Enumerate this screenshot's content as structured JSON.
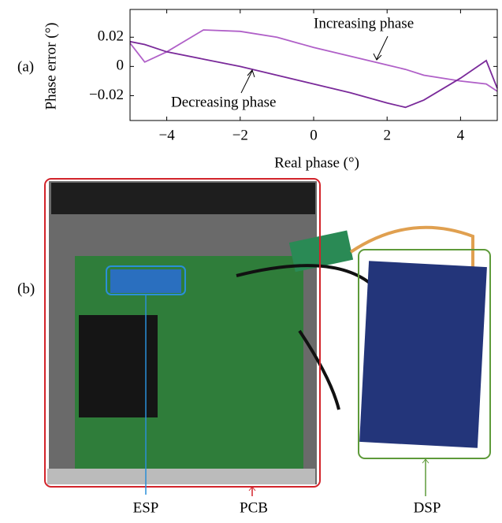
{
  "chart_data": {
    "type": "line",
    "y_label": "Phase error (°)",
    "x_label": "Real phase (°)",
    "x": [
      -5,
      -4.6,
      -4,
      -3,
      -2,
      -1,
      0,
      1,
      2,
      2.5,
      3,
      4,
      4.7,
      5
    ],
    "series": [
      {
        "name": "Increasing phase",
        "color": "#b060c8",
        "values": [
          0.016,
          0.003,
          0.01,
          0.025,
          0.024,
          0.02,
          0.013,
          0.007,
          0.001,
          -0.002,
          -0.006,
          -0.01,
          -0.012,
          -0.017
        ]
      },
      {
        "name": "Decreasing phase",
        "color": "#7a2a9a",
        "values": [
          0.017,
          0.015,
          0.01,
          0.005,
          0,
          -0.006,
          -0.012,
          -0.018,
          -0.025,
          -0.028,
          -0.023,
          -0.008,
          0.004,
          -0.015
        ]
      }
    ],
    "xlim": [
      -5,
      5
    ],
    "ylim": [
      -0.037,
      0.039
    ],
    "xticks": [
      {
        "value": -4,
        "label": "−4"
      },
      {
        "value": -2,
        "label": "−2"
      },
      0,
      2,
      4
    ],
    "yticks": [
      {
        "value": -0.02,
        "label": "−0.02"
      },
      0,
      0.02
    ]
  },
  "panel_labels": [
    "(a)",
    "(b)"
  ],
  "photo_labels": [
    "ESP",
    "PCB",
    "DSP"
  ]
}
